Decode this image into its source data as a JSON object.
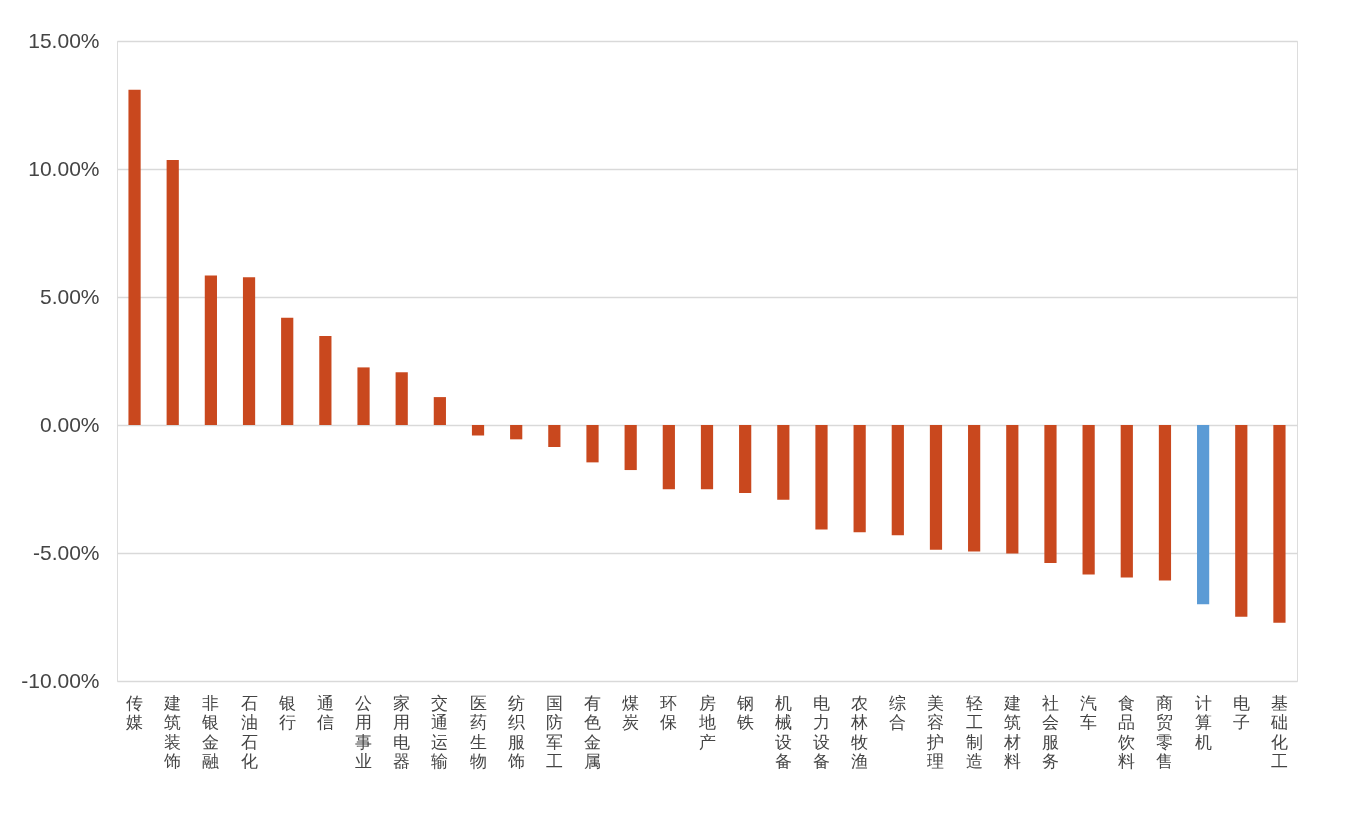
{
  "chart_data": {
    "type": "bar",
    "categories": [
      "传媒",
      "建筑装饰",
      "非银金融",
      "石油石化",
      "银行",
      "通信",
      "公用事业",
      "家用电器",
      "交通运输",
      "医药生物",
      "纺织服饰",
      "国防军工",
      "有色金属",
      "煤炭",
      "环保",
      "房地产",
      "钢铁",
      "机械设备",
      "电力设备",
      "农林牧渔",
      "综合",
      "美容护理",
      "轻工制造",
      "建筑材料",
      "社会服务",
      "汽车",
      "食品饮料",
      "商贸零售",
      "计算机",
      "电子",
      "基础化工"
    ],
    "values": [
      13.1,
      10.35,
      5.84,
      5.77,
      4.19,
      3.48,
      2.25,
      2.06,
      1.09,
      -0.41,
      -0.56,
      -0.86,
      -1.46,
      -1.76,
      -2.51,
      -2.51,
      -2.66,
      -2.92,
      -4.08,
      -4.19,
      -4.31,
      -4.87,
      -4.94,
      -5.02,
      -5.39,
      -5.84,
      -5.96,
      -6.07,
      -7.0,
      -7.49,
      -7.72
    ],
    "colors": [
      "#c9481e",
      "#c9481e",
      "#c9481e",
      "#c9481e",
      "#c9481e",
      "#c9481e",
      "#c9481e",
      "#c9481e",
      "#c9481e",
      "#c9481e",
      "#c9481e",
      "#c9481e",
      "#c9481e",
      "#c9481e",
      "#c9481e",
      "#c9481e",
      "#c9481e",
      "#c9481e",
      "#c9481e",
      "#c9481e",
      "#c9481e",
      "#c9481e",
      "#c9481e",
      "#c9481e",
      "#c9481e",
      "#c9481e",
      "#c9481e",
      "#c9481e",
      "#5b9bd5",
      "#c9481e",
      "#c9481e"
    ],
    "ylim": [
      -10,
      15
    ],
    "yticks": [
      {
        "value": -10,
        "label": "-10.00%"
      },
      {
        "value": -5,
        "label": "-5.00%"
      },
      {
        "value": 0,
        "label": "0.00%"
      },
      {
        "value": 5,
        "label": "5.00%"
      },
      {
        "value": 10,
        "label": "10.00%"
      },
      {
        "value": 15,
        "label": "15.00%"
      }
    ],
    "grid": "y"
  }
}
